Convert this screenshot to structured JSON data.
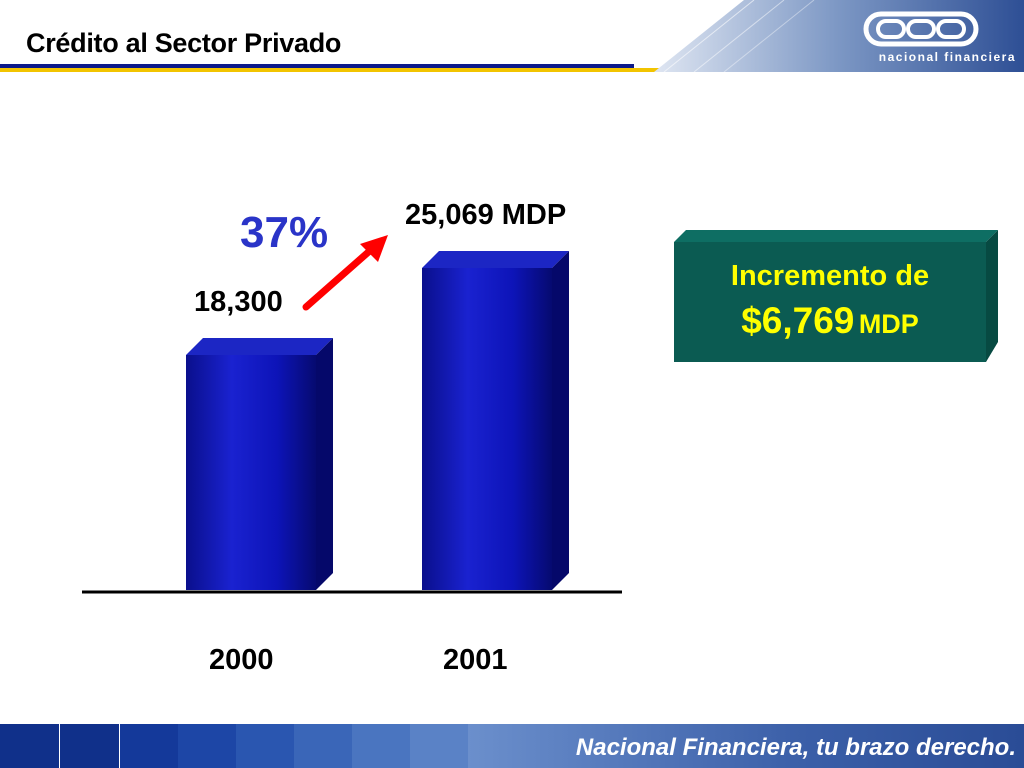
{
  "header": {
    "title": "Crédito al Sector Privado",
    "logo_text": "nacional financiera"
  },
  "chart_data": {
    "type": "bar",
    "categories": [
      "2000",
      "2001"
    ],
    "values": [
      18300,
      25069
    ],
    "data_labels": [
      "18,300",
      "25,069 MDP"
    ],
    "growth_label": "37%",
    "ylim": [
      0,
      28000
    ],
    "grid": false,
    "title": "",
    "xlabel": "",
    "ylabel": ""
  },
  "callout": {
    "line1": "Incremento de",
    "amount": "$6,769",
    "unit": "MDP"
  },
  "footer": {
    "slogan": "Nacional Financiera, tu brazo derecho."
  },
  "colors": {
    "bar": "#0d14b8",
    "callout_bg": "#0b5b52",
    "callout_text": "#ffff00",
    "arrow": "#ff0000",
    "percent": "#2a34c8",
    "title_rule": "#0c1a8a",
    "gold_rule": "#f2c400"
  }
}
